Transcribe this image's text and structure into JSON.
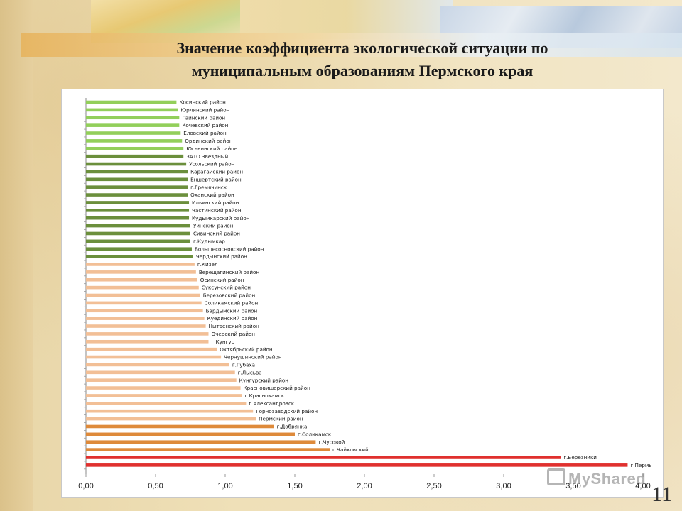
{
  "title": {
    "line1": "Значение коэффициента экологической ситуации по",
    "line2": "муниципальным образованиям Пермского края"
  },
  "slide_number": "11",
  "watermark": "MyShared",
  "colors": {
    "light_green": "#92cf5a",
    "dark_green": "#6b8f3c",
    "peach": "#f2bf96",
    "orange": "#de8a3a",
    "red": "#e0302e"
  },
  "chart_data": {
    "type": "bar",
    "orientation": "horizontal",
    "title": "",
    "xlabel": "",
    "ylabel": "",
    "xlim": [
      0,
      4
    ],
    "x_ticks": [
      "0,00",
      "0,50",
      "1,00",
      "1,50",
      "2,00",
      "2,50",
      "3,00",
      "3,50",
      "4,00"
    ],
    "grid": false,
    "categories": [
      "Косинский район",
      "Юрлинский район",
      "Гайнский район",
      "Кочевский район",
      "Еловский район",
      "Ординский район",
      "Юсьвинский район",
      "ЗАТО Звездный",
      "Усольский район",
      "Карагайский район",
      "Еншертский район",
      "г.Гремячинск",
      "Оханский район",
      "Ильинский район",
      "Частинский район",
      "Кудымкарский район",
      "Уинский район",
      "Сивинский район",
      "г.Кудымкар",
      "Большесосновский район",
      "Чердынский район",
      "г.Кизел",
      "Верещагинский район",
      "Осинский район",
      "Суксунский район",
      "Березовский район",
      "Соликамский район",
      "Бардымский район",
      "Куединский район",
      "Нытвенский район",
      "Очерский район",
      "г.Кунгур",
      "Октябрьский район",
      "Чернушинский район",
      "г.Губаха",
      "г.Лысьва",
      "Кунгурский район",
      "Красновишерский район",
      "г.Краснокамск",
      "г.Александровск",
      "Горнозаводский район",
      "Пермский район",
      "г.Добрянка",
      "г.Соликамск",
      "г.Чусовой",
      "г.Чайковский",
      "г.Березники",
      "г.Пермь"
    ],
    "values": [
      0.65,
      0.66,
      0.67,
      0.67,
      0.68,
      0.69,
      0.7,
      0.7,
      0.72,
      0.73,
      0.73,
      0.73,
      0.73,
      0.74,
      0.74,
      0.74,
      0.75,
      0.75,
      0.75,
      0.76,
      0.77,
      0.78,
      0.79,
      0.8,
      0.81,
      0.82,
      0.83,
      0.84,
      0.85,
      0.86,
      0.88,
      0.88,
      0.94,
      0.97,
      1.03,
      1.07,
      1.08,
      1.11,
      1.12,
      1.15,
      1.2,
      1.22,
      1.35,
      1.5,
      1.65,
      1.75,
      3.41,
      3.89
    ],
    "groups": [
      {
        "color": "light_green",
        "count": 7
      },
      {
        "color": "dark_green",
        "count": 14
      },
      {
        "color": "peach",
        "count": 21
      },
      {
        "color": "orange",
        "count": 4
      },
      {
        "color": "red",
        "count": 2
      }
    ]
  }
}
